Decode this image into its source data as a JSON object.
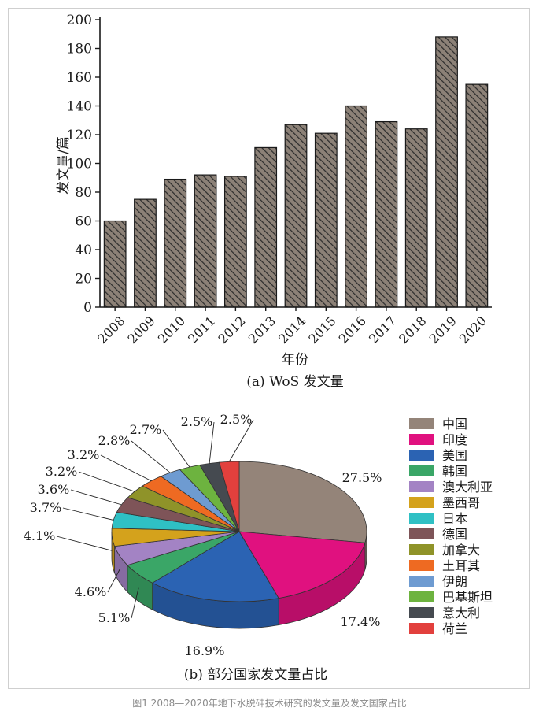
{
  "figure_caption": "图1 2008—2020年地下水脱砷技术研究的发文量及发文国家占比",
  "colors": {
    "bar_fill": "#8c8177",
    "bar_hatch": "#2b2b2b",
    "axis": "#1a1a1a"
  },
  "chart_data": [
    {
      "type": "bar",
      "caption": "(a) WoS 发文量",
      "xlabel": "年份",
      "ylabel": "发文量/篇",
      "ylim": [
        0,
        200
      ],
      "yticks": [
        0,
        20,
        40,
        60,
        80,
        100,
        120,
        140,
        160,
        180,
        200
      ],
      "categories": [
        "2008",
        "2009",
        "2010",
        "2011",
        "2012",
        "2013",
        "2014",
        "2015",
        "2016",
        "2017",
        "2018",
        "2019",
        "2020"
      ],
      "values": [
        60,
        75,
        89,
        92,
        91,
        111,
        127,
        121,
        140,
        129,
        124,
        188,
        155
      ],
      "grid": false,
      "pattern": "diagonal-hatch"
    },
    {
      "type": "pie",
      "style": "3d",
      "caption": "(b) 部分国家发文量占比",
      "legend_position": "right",
      "slices": [
        {
          "label": "中国",
          "value": 27.5,
          "display": "27.5%",
          "color": "#948479"
        },
        {
          "label": "印度",
          "value": 17.4,
          "display": "17.4%",
          "color": "#e0117f"
        },
        {
          "label": "美国",
          "value": 16.9,
          "display": "16.9%",
          "color": "#2b63b3"
        },
        {
          "label": "韩国",
          "value": 5.1,
          "display": "5.1%",
          "color": "#3aa667"
        },
        {
          "label": "澳大利亚",
          "value": 4.6,
          "display": "4.6%",
          "color": "#a383c4"
        },
        {
          "label": "墨西哥",
          "value": 4.1,
          "display": "4.1%",
          "color": "#d4a21c"
        },
        {
          "label": "日本",
          "value": 3.7,
          "display": "3.7%",
          "color": "#2fc0c4"
        },
        {
          "label": "德国",
          "value": 3.6,
          "display": "3.6%",
          "color": "#7e5458"
        },
        {
          "label": "加拿大",
          "value": 3.2,
          "display": "3.2%",
          "color": "#8f9329"
        },
        {
          "label": "土耳其",
          "value": 3.2,
          "display": "3.2%",
          "color": "#ee6a22"
        },
        {
          "label": "伊朗",
          "value": 2.8,
          "display": "2.8%",
          "color": "#6e9bd1"
        },
        {
          "label": "巴基斯坦",
          "value": 2.7,
          "display": "2.7%",
          "color": "#6db33f"
        },
        {
          "label": "意大利",
          "value": 2.5,
          "display": "2.5%",
          "color": "#454a50"
        },
        {
          "label": "荷兰",
          "value": 2.5,
          "display": "2.5%",
          "color": "#e2403d"
        }
      ]
    }
  ]
}
